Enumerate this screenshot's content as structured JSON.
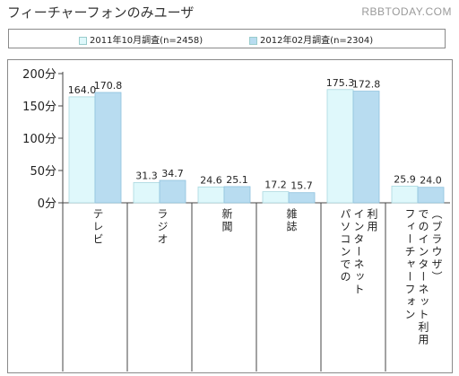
{
  "header": {
    "title": "フィーチャーフォンのみユーザ",
    "watermark": "RBBTODAY.COM"
  },
  "colors": {
    "series_2011": "#dff8fb",
    "series_2012": "#b8dcf0",
    "border": "#8a8a8a"
  },
  "chart_data": {
    "type": "bar",
    "title": "フィーチャーフォンのみユーザ",
    "categories": [
      "テレビ",
      "ラジオ",
      "新聞",
      "雑誌",
      "パソコンでのインターネット利用",
      "フィーチャーフォンでのインターネット利用（ブラウザ）"
    ],
    "category_label_columns": [
      [
        "テレビ"
      ],
      [
        "ラジオ"
      ],
      [
        "新聞"
      ],
      [
        "雑誌"
      ],
      [
        "パソコンでの",
        "インターネット",
        "利用"
      ],
      [
        "フィーチャーフォン",
        "でのインターネット利用",
        "（ブラウザ）"
      ]
    ],
    "series": [
      {
        "name": "2011年10月調査(n=2458)",
        "values": [
          164.0,
          31.3,
          24.6,
          17.2,
          175.3,
          25.9
        ]
      },
      {
        "name": "2012年02月調査(n=2304)",
        "values": [
          170.8,
          34.7,
          25.1,
          15.7,
          172.8,
          24.0
        ]
      }
    ],
    "value_labels": [
      [
        "164.0",
        "31.3",
        "24.6",
        "17.2",
        "175.3",
        "25.9"
      ],
      [
        "170.8",
        "34.7",
        "25.1",
        "15.7",
        "172.8",
        "24.0"
      ]
    ],
    "yticks": [
      0,
      50,
      100,
      150,
      200
    ],
    "ytick_labels": [
      "0分",
      "50分",
      "100分",
      "150分",
      "200分"
    ],
    "ylim": [
      0,
      200
    ],
    "legend_position": "top",
    "grid": false
  }
}
